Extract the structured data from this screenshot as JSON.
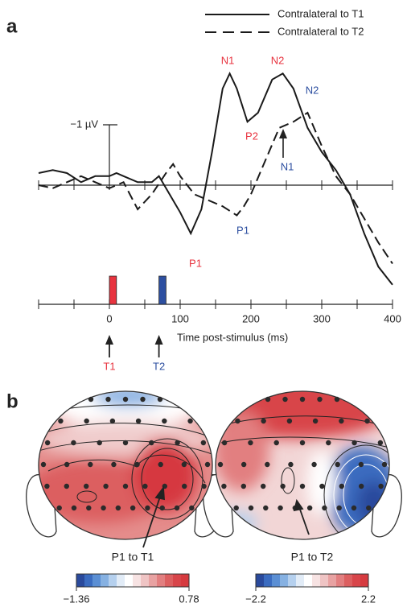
{
  "chart_data": {
    "type": "line",
    "panel": "a",
    "series": [
      {
        "name": "Contralateral to T1",
        "color": "#1a1a1a",
        "dashed": false,
        "x": [
          -100,
          -80,
          -60,
          -40,
          -20,
          0,
          10,
          20,
          40,
          60,
          70,
          80,
          100,
          115,
          130,
          145,
          160,
          170,
          180,
          195,
          210,
          230,
          245,
          260,
          280,
          300,
          320,
          340,
          360,
          380,
          400
        ],
        "values": [
          -0.2,
          -0.25,
          -0.2,
          -0.05,
          -0.15,
          -0.15,
          -0.2,
          -0.15,
          -0.05,
          -0.05,
          -0.15,
          0.05,
          0.45,
          0.8,
          0.4,
          -0.55,
          -1.6,
          -1.85,
          -1.6,
          -1.05,
          -1.2,
          -1.75,
          -1.85,
          -1.6,
          -0.95,
          -0.55,
          -0.25,
          0.15,
          0.8,
          1.35,
          1.65
        ]
      },
      {
        "name": "Contralateral to T2",
        "color": "#1a1a1a",
        "dashed": true,
        "x": [
          -100,
          -80,
          -60,
          -40,
          -20,
          0,
          20,
          40,
          60,
          80,
          90,
          100,
          120,
          140,
          160,
          180,
          190,
          200,
          220,
          240,
          260,
          280,
          300,
          320,
          340,
          360,
          380,
          400
        ],
        "values": [
          0,
          0.05,
          -0.05,
          -0.15,
          -0.05,
          0.05,
          -0.05,
          0.4,
          0.15,
          -0.2,
          -0.35,
          -0.15,
          0.15,
          0.25,
          0.35,
          0.5,
          0.35,
          0.15,
          -0.4,
          -0.95,
          -1.05,
          -1.2,
          -0.65,
          -0.15,
          0.15,
          0.55,
          0.95,
          1.3
        ]
      }
    ],
    "xlim": [
      -100,
      400
    ],
    "xticks": [
      0,
      100,
      200,
      300,
      400
    ],
    "xminor": [
      -100,
      -50,
      50,
      150,
      250,
      350
    ],
    "xlabel": "Time post-stimulus (ms)",
    "ylim": [
      -2,
      1.8
    ],
    "yticks": [
      {
        "value": -1,
        "label": "−1 µV"
      }
    ],
    "peaks": [
      {
        "text": "N1",
        "color": "#e8333f"
      },
      {
        "text": "N2",
        "color": "#e8333f"
      },
      {
        "text": "P2",
        "color": "#e8333f"
      },
      {
        "text": "P1",
        "color": "#e8333f"
      },
      {
        "text": "N2",
        "color": "#2d4fa0"
      },
      {
        "text": "N1",
        "color": "#2d4fa0"
      },
      {
        "text": "P1",
        "color": "#2d4fa0"
      }
    ],
    "stimuli": [
      {
        "label": "T1",
        "onset": 0,
        "duration": 10,
        "color": "#e8333f"
      },
      {
        "label": "T2",
        "onset": 70,
        "duration": 10,
        "color": "#2d4fa0"
      }
    ]
  },
  "panel_b": {
    "label": "b",
    "palette": [
      "#2a4a9c",
      "#3b6cc0",
      "#5b8fd4",
      "#86b1e2",
      "#b5d0ee",
      "#e2ecf7",
      "#ffffff",
      "#f7e3e3",
      "#efc4c4",
      "#e8a2a2",
      "#e27f80",
      "#dc5f60",
      "#d8454a",
      "#d63a3f"
    ],
    "maps": [
      {
        "title": "P1 to T1",
        "colorbar": {
          "lim": [
            -1.36,
            0.78
          ],
          "ticks": [
            {
              "value": -1.36,
              "label": "−1.36"
            },
            0.78
          ]
        }
      },
      {
        "title": "P1 to T2",
        "colorbar": {
          "lim": [
            -2.2,
            2.2
          ],
          "ticks": [
            {
              "value": -2.2,
              "label": "−2.2"
            },
            2.2
          ]
        }
      }
    ]
  }
}
